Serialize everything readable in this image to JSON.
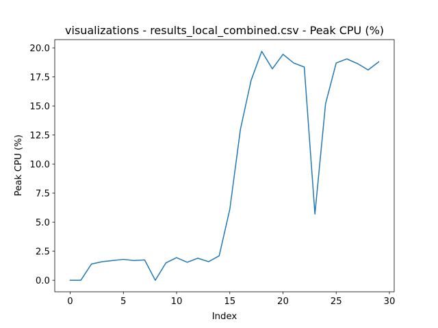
{
  "chart_data": {
    "type": "line",
    "title": "visualizations - results_local_combined.csv - Peak CPU (%)",
    "xlabel": "Index",
    "ylabel": "Peak CPU (%)",
    "xlim": [
      -1.45,
      30.45
    ],
    "ylim": [
      -0.99,
      20.71
    ],
    "x_ticks": [
      0,
      5,
      10,
      15,
      20,
      25,
      30
    ],
    "x_tick_labels": [
      "0",
      "5",
      "10",
      "15",
      "20",
      "25",
      "30"
    ],
    "y_ticks": [
      0.0,
      2.5,
      5.0,
      7.5,
      10.0,
      12.5,
      15.0,
      17.5,
      20.0
    ],
    "y_tick_labels": [
      "0.0",
      "2.5",
      "5.0",
      "7.5",
      "10.0",
      "12.5",
      "15.0",
      "17.5",
      "20.0"
    ],
    "grid": false,
    "line_color": "#1f77b4",
    "series": [
      {
        "x": [
          0,
          1,
          2,
          3,
          4,
          5,
          6,
          7,
          8,
          9,
          10,
          11,
          12,
          13,
          14,
          15,
          16,
          17,
          18,
          19,
          20,
          21,
          22,
          23,
          24,
          25,
          26,
          27,
          28,
          29
        ],
        "values": [
          0.0,
          0.0,
          1.4,
          1.6,
          1.7,
          1.8,
          1.7,
          1.75,
          0.0,
          1.5,
          1.95,
          1.55,
          1.9,
          1.6,
          2.1,
          6.1,
          13.0,
          17.2,
          19.7,
          18.2,
          19.45,
          18.7,
          18.35,
          5.7,
          15.2,
          18.7,
          19.05,
          18.65,
          18.1,
          18.8
        ]
      }
    ]
  }
}
